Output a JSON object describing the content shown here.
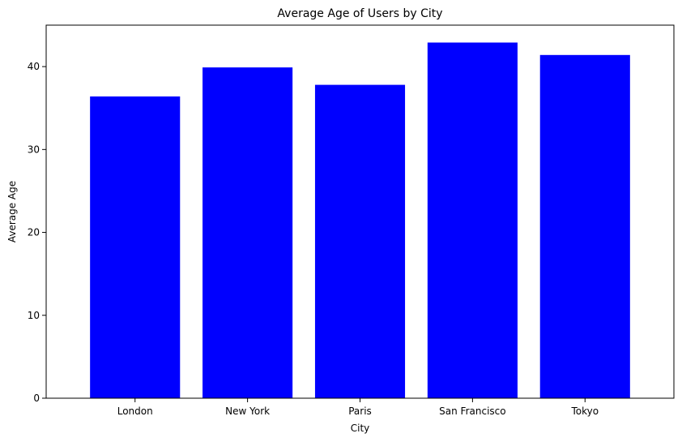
{
  "chart_data": {
    "type": "bar",
    "title": "Average Age of Users by City",
    "xlabel": "City",
    "ylabel": "Average Age",
    "categories": [
      "London",
      "New York",
      "Paris",
      "San Francisco",
      "Tokyo"
    ],
    "values": [
      36.4,
      39.9,
      37.8,
      42.9,
      41.4
    ],
    "ylim": [
      0,
      45
    ],
    "yticks": [
      0,
      10,
      20,
      30,
      40
    ],
    "bar_color": "#0000ff",
    "grid": false,
    "legend": "none"
  }
}
